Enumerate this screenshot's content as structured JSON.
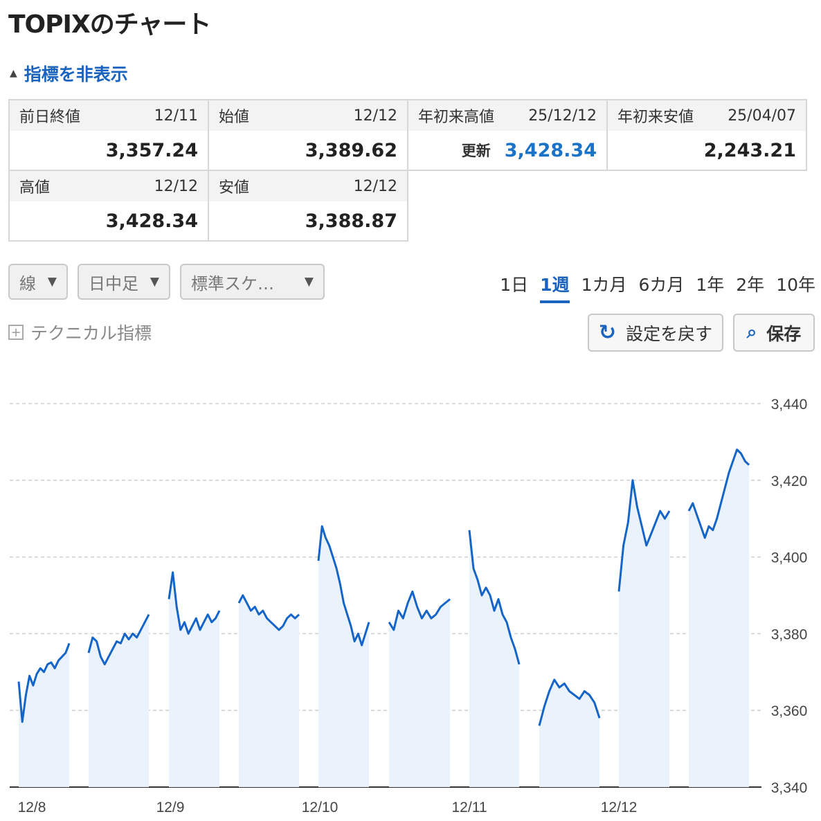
{
  "title": "TOPIXのチャート",
  "toggle_label": "指標を非表示",
  "stats": [
    {
      "label": "前日終値",
      "date": "12/11",
      "value": "3,357.24",
      "note": ""
    },
    {
      "label": "始値",
      "date": "12/12",
      "value": "3,389.62",
      "note": ""
    },
    {
      "label": "年初来高値",
      "date": "25/12/12",
      "value": "3,428.34",
      "note": "更新"
    },
    {
      "label": "年初来安値",
      "date": "25/04/07",
      "value": "2,243.21",
      "note": ""
    },
    {
      "label": "高値",
      "date": "12/12",
      "value": "3,428.34",
      "note": ""
    },
    {
      "label": "安値",
      "date": "12/12",
      "value": "3,388.87",
      "note": ""
    }
  ],
  "controls": {
    "chart_type": "線",
    "interval": "日中足",
    "scale": "標準スケ…",
    "ranges": [
      "1日",
      "1週",
      "1カ月",
      "6カ月",
      "1年",
      "2年",
      "10年"
    ],
    "active_range": "1週",
    "technical_label": "テクニカル指標",
    "reset_label": "設定を戻す",
    "save_label": "保存"
  },
  "colors": {
    "line": "#1565c8",
    "fill": "#eaf2fb",
    "accent": "#1a64c0"
  },
  "chart_data": {
    "type": "line",
    "y_ticks": [
      "3,440",
      "3,420",
      "3,400",
      "3,380",
      "3,360",
      "3,340"
    ],
    "x_tick_labels": [
      "12/8",
      "12/9",
      "12/10",
      "12/11",
      "12/12"
    ],
    "ylim": [
      3340,
      3440
    ],
    "sessions": [
      {
        "label": "12/8 前場",
        "values": [
          3367.5,
          3357,
          3364,
          3369,
          3366.5,
          3369.5,
          3371,
          3370,
          3372,
          3372.5,
          3371,
          3373,
          3374,
          3375,
          3377.5
        ]
      },
      {
        "label": "12/8 後場",
        "values": [
          3375,
          3379,
          3378,
          3374,
          3372,
          3374,
          3376,
          3378,
          3377.5,
          3380,
          3378.5,
          3380,
          3379,
          3381,
          3383,
          3385
        ]
      },
      {
        "label": "12/9 前場",
        "values": [
          3389,
          3396,
          3387,
          3381,
          3383,
          3380,
          3382,
          3384,
          3381,
          3383,
          3385,
          3383,
          3384,
          3386
        ]
      },
      {
        "label": "12/9 後場",
        "values": [
          3388,
          3390,
          3388,
          3386,
          3387,
          3385,
          3386,
          3384,
          3383,
          3382,
          3381,
          3382,
          3384,
          3385,
          3384,
          3385
        ]
      },
      {
        "label": "12/10 前場",
        "values": [
          3399,
          3408,
          3405,
          3403,
          3400,
          3397,
          3393,
          3388,
          3385,
          3382,
          3378,
          3380,
          3377,
          3380,
          3383
        ]
      },
      {
        "label": "12/10 後場",
        "values": [
          3383,
          3381,
          3386,
          3384,
          3388,
          3391,
          3387,
          3384,
          3386,
          3384,
          3385,
          3387,
          3388,
          3389
        ]
      },
      {
        "label": "12/11 前場",
        "values": [
          3407,
          3397,
          3394,
          3390,
          3392,
          3390,
          3386,
          3389,
          3385,
          3383,
          3379,
          3376,
          3372
        ]
      },
      {
        "label": "12/11 後場",
        "values": [
          3356,
          3361,
          3365,
          3368,
          3366,
          3367,
          3365,
          3364,
          3363,
          3365,
          3364,
          3362,
          3358
        ]
      },
      {
        "label": "12/12 前場",
        "values": [
          3391,
          3403,
          3409,
          3420,
          3413,
          3408,
          3403,
          3406,
          3409,
          3412,
          3410,
          3412
        ]
      },
      {
        "label": "12/12 後場",
        "values": [
          3412,
          3414,
          3411,
          3408,
          3405,
          3408,
          3407,
          3410,
          3414,
          3418,
          3422,
          3425,
          3428,
          3427,
          3425,
          3424
        ]
      }
    ]
  }
}
